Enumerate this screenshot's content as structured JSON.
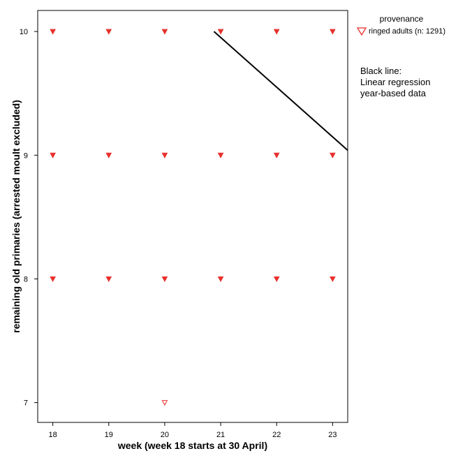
{
  "chart_data": {
    "type": "scatter",
    "title": "",
    "xlabel": "week (week 18 starts at 30 April)",
    "ylabel": "remaining old primaries (arrested moult excluded)",
    "xlim": [
      17.73,
      23.27
    ],
    "ylim": [
      6.84,
      10.17
    ],
    "xticks": [
      18,
      19,
      20,
      21,
      22,
      23
    ],
    "yticks": [
      7,
      8,
      9,
      10
    ],
    "grid": false,
    "legend": {
      "title": "provenance",
      "placement": "top-right-outside",
      "entries": [
        "ringed adults (n: 1291)"
      ]
    },
    "series": [
      {
        "name": "ringed adults (n: 1291)",
        "marker": "triangle-down",
        "color": "#e8302c",
        "points": [
          [
            18,
            10
          ],
          [
            19,
            10
          ],
          [
            20,
            10
          ],
          [
            21,
            10
          ],
          [
            22,
            10
          ],
          [
            23,
            10
          ],
          [
            18,
            9
          ],
          [
            19,
            9
          ],
          [
            20,
            9
          ],
          [
            21,
            9
          ],
          [
            22,
            9
          ],
          [
            23,
            9
          ],
          [
            18,
            8
          ],
          [
            19,
            8
          ],
          [
            20,
            8
          ],
          [
            21,
            8
          ],
          [
            22,
            8
          ],
          [
            23,
            8
          ],
          [
            20,
            7
          ]
        ],
        "filled": [
          true,
          true,
          true,
          true,
          true,
          true,
          true,
          true,
          true,
          true,
          true,
          true,
          true,
          true,
          true,
          true,
          true,
          true,
          false
        ]
      }
    ],
    "regression_line": {
      "color": "#000000",
      "x": [
        20.88,
        23.27
      ],
      "y": [
        10.0,
        9.04
      ]
    },
    "annotation": [
      "Black line:",
      "Linear regression",
      "year-based data"
    ]
  }
}
